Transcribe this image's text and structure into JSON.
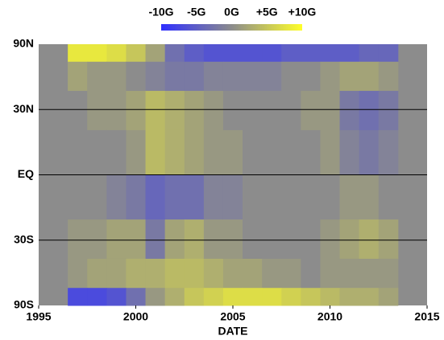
{
  "chart_data": {
    "type": "heatmap",
    "xlabel": "DATE",
    "xlim": [
      1995,
      2015
    ],
    "xticks": [
      1995,
      2000,
      2005,
      2010,
      2015
    ],
    "ylim": [
      -90,
      90
    ],
    "yscale": "sine",
    "yticks": [
      {
        "value": 90,
        "label": "90N"
      },
      {
        "value": 30,
        "label": "30N"
      },
      {
        "value": 0,
        "label": "EQ"
      },
      {
        "value": -30,
        "label": "30S"
      },
      {
        "value": -90,
        "label": "90S"
      }
    ],
    "grid": true,
    "x_edges": [
      1996.5,
      1997.5,
      1998.5,
      1999.5,
      2000.5,
      2001.5,
      2002.5,
      2003.5,
      2004.5,
      2005.5,
      2006.5,
      2007.5,
      2008.5,
      2009.5,
      2010.5,
      2011.5,
      2012.5,
      2013.5
    ],
    "lat_edges": [
      90,
      60,
      40,
      20,
      0,
      -20,
      -40,
      -60,
      -90
    ],
    "z": [
      [
        8,
        8,
        7,
        5,
        2,
        -3,
        -5,
        -6,
        -6,
        -6,
        -6,
        -5,
        -5,
        -5,
        -5,
        -4,
        -4
      ],
      [
        2,
        1,
        1,
        0,
        -1,
        -2,
        -2,
        -1,
        -1,
        -1,
        -1,
        0,
        0,
        1,
        2,
        2,
        1
      ],
      [
        0,
        1,
        1,
        2,
        4,
        3,
        2,
        1,
        0,
        0,
        0,
        0,
        1,
        1,
        -2,
        -3,
        -2
      ],
      [
        0,
        0,
        0,
        1,
        4,
        3,
        2,
        1,
        1,
        0,
        0,
        0,
        0,
        1,
        -1,
        -2,
        -1
      ],
      [
        0,
        0,
        -1,
        -2,
        -4,
        -3,
        -3,
        -1,
        -1,
        0,
        0,
        0,
        0,
        0,
        1,
        1,
        0
      ],
      [
        1,
        1,
        2,
        2,
        -2,
        2,
        3,
        1,
        1,
        0,
        0,
        0,
        0,
        1,
        2,
        3,
        2
      ],
      [
        1,
        2,
        2,
        3,
        3,
        4,
        4,
        3,
        2,
        2,
        1,
        1,
        0,
        1,
        1,
        1,
        1
      ],
      [
        -7,
        -7,
        -6,
        -3,
        1,
        3,
        5,
        6,
        7,
        7,
        7,
        6,
        5,
        4,
        3,
        3,
        2
      ]
    ],
    "clim": [
      -10,
      10
    ],
    "cticks": [
      {
        "value": -10,
        "label": "-10G"
      },
      {
        "value": -5,
        "label": "-5G"
      },
      {
        "value": 0,
        "label": "0G"
      },
      {
        "value": 5,
        "label": "+5G"
      },
      {
        "value": 10,
        "label": "+10G"
      }
    ],
    "colormap": [
      "#2f2fff",
      "#8c8c8c",
      "#ffff2a"
    ],
    "background": "#8c8c8c"
  }
}
